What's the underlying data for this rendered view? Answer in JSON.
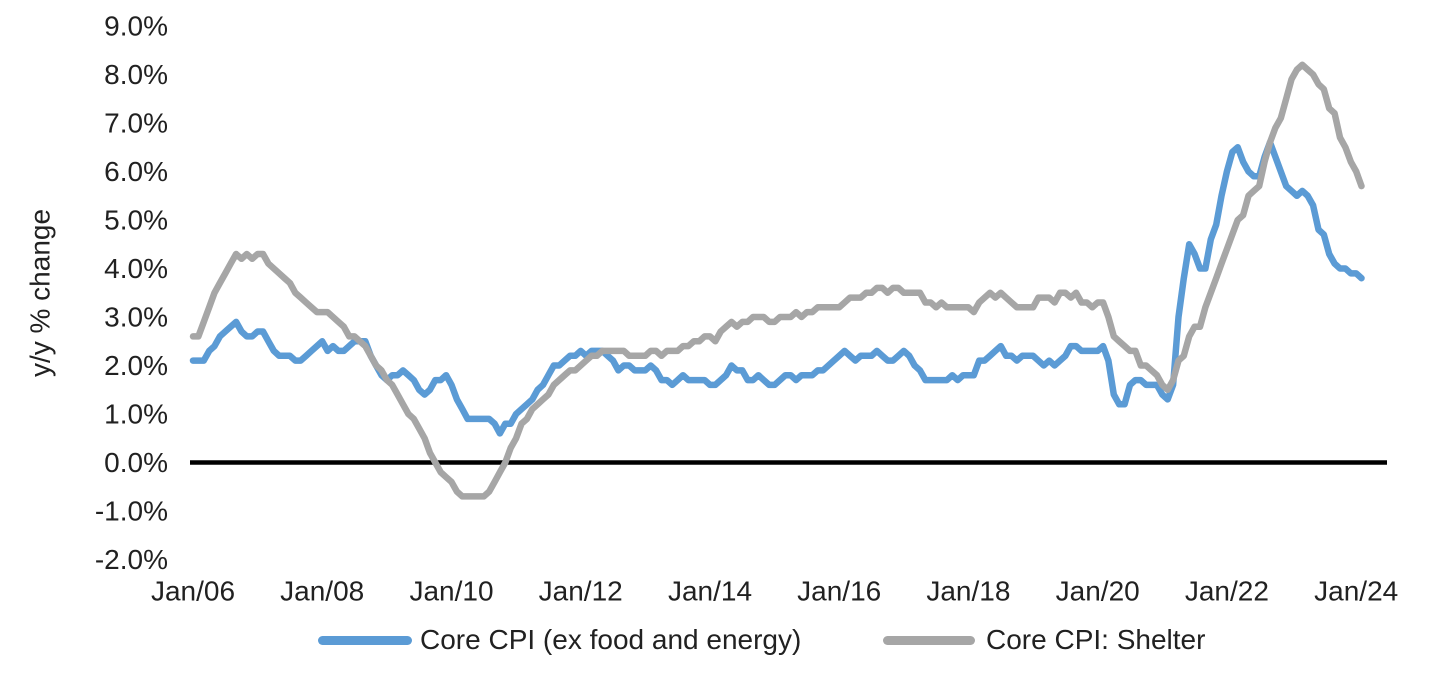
{
  "chart_data": {
    "type": "line",
    "title": "",
    "ylabel": "y/y % change",
    "xlabel": "",
    "ylim": [
      -2.0,
      9.0
    ],
    "grid": false,
    "legend_position": "bottom",
    "zero_line": true,
    "x_frequency": "monthly",
    "x_range": [
      "Jan 2006",
      "Feb 2024"
    ],
    "x_tick_labels": [
      "Jan/06",
      "Jan/08",
      "Jan/10",
      "Jan/12",
      "Jan/14",
      "Jan/16",
      "Jan/18",
      "Jan/20",
      "Jan/22",
      "Jan/24"
    ],
    "y_ticks": [
      {
        "label": "9.0%",
        "value": 9.0
      },
      {
        "label": "8.0%",
        "value": 8.0
      },
      {
        "label": "7.0%",
        "value": 7.0
      },
      {
        "label": "6.0%",
        "value": 6.0
      },
      {
        "label": "5.0%",
        "value": 5.0
      },
      {
        "label": "4.0%",
        "value": 4.0
      },
      {
        "label": "3.0%",
        "value": 3.0
      },
      {
        "label": "2.0%",
        "value": 2.0
      },
      {
        "label": "1.0%",
        "value": 1.0
      },
      {
        "label": "0.0%",
        "value": 0.0
      },
      {
        "label": "-1.0%",
        "value": -1.0
      },
      {
        "label": "-2.0%",
        "value": -2.0
      }
    ],
    "series": [
      {
        "name": "Core CPI (ex food and energy)",
        "color": "#5B9BD5",
        "values": [
          2.1,
          2.1,
          2.1,
          2.3,
          2.4,
          2.6,
          2.7,
          2.8,
          2.9,
          2.7,
          2.6,
          2.6,
          2.7,
          2.7,
          2.5,
          2.3,
          2.2,
          2.2,
          2.2,
          2.1,
          2.1,
          2.2,
          2.3,
          2.4,
          2.5,
          2.3,
          2.4,
          2.3,
          2.3,
          2.4,
          2.5,
          2.5,
          2.5,
          2.2,
          2.0,
          1.8,
          1.7,
          1.8,
          1.8,
          1.9,
          1.8,
          1.7,
          1.5,
          1.4,
          1.5,
          1.7,
          1.7,
          1.8,
          1.6,
          1.3,
          1.1,
          0.9,
          0.9,
          0.9,
          0.9,
          0.9,
          0.8,
          0.6,
          0.8,
          0.8,
          1.0,
          1.1,
          1.2,
          1.3,
          1.5,
          1.6,
          1.8,
          2.0,
          2.0,
          2.1,
          2.2,
          2.2,
          2.3,
          2.2,
          2.3,
          2.3,
          2.3,
          2.2,
          2.1,
          1.9,
          2.0,
          2.0,
          1.9,
          1.9,
          1.9,
          2.0,
          1.9,
          1.7,
          1.7,
          1.6,
          1.7,
          1.8,
          1.7,
          1.7,
          1.7,
          1.7,
          1.6,
          1.6,
          1.7,
          1.8,
          2.0,
          1.9,
          1.9,
          1.7,
          1.7,
          1.8,
          1.7,
          1.6,
          1.6,
          1.7,
          1.8,
          1.8,
          1.7,
          1.8,
          1.8,
          1.8,
          1.9,
          1.9,
          2.0,
          2.1,
          2.2,
          2.3,
          2.2,
          2.1,
          2.2,
          2.2,
          2.2,
          2.3,
          2.2,
          2.1,
          2.1,
          2.2,
          2.3,
          2.2,
          2.0,
          1.9,
          1.7,
          1.7,
          1.7,
          1.7,
          1.7,
          1.8,
          1.7,
          1.8,
          1.8,
          1.8,
          2.1,
          2.1,
          2.2,
          2.3,
          2.4,
          2.2,
          2.2,
          2.1,
          2.2,
          2.2,
          2.2,
          2.1,
          2.0,
          2.1,
          2.0,
          2.1,
          2.2,
          2.4,
          2.4,
          2.3,
          2.3,
          2.3,
          2.3,
          2.4,
          2.1,
          1.4,
          1.2,
          1.2,
          1.6,
          1.7,
          1.7,
          1.6,
          1.6,
          1.6,
          1.4,
          1.3,
          1.6,
          3.0,
          3.8,
          4.5,
          4.3,
          4.0,
          4.0,
          4.6,
          4.9,
          5.5,
          6.0,
          6.4,
          6.5,
          6.2,
          6.0,
          5.9,
          5.9,
          6.3,
          6.6,
          6.3,
          6.0,
          5.7,
          5.6,
          5.5,
          5.6,
          5.5,
          5.3,
          4.8,
          4.7,
          4.3,
          4.1,
          4.0,
          4.0,
          3.9,
          3.9,
          3.8
        ]
      },
      {
        "name": "Core CPI: Shelter",
        "color": "#A6A6A6",
        "values": [
          2.6,
          2.6,
          2.9,
          3.2,
          3.5,
          3.7,
          3.9,
          4.1,
          4.3,
          4.2,
          4.3,
          4.2,
          4.3,
          4.3,
          4.1,
          4.0,
          3.9,
          3.8,
          3.7,
          3.5,
          3.4,
          3.3,
          3.2,
          3.1,
          3.1,
          3.1,
          3.0,
          2.9,
          2.8,
          2.6,
          2.6,
          2.5,
          2.4,
          2.2,
          2.0,
          1.9,
          1.7,
          1.6,
          1.4,
          1.2,
          1.0,
          0.9,
          0.7,
          0.5,
          0.2,
          0.0,
          -0.2,
          -0.3,
          -0.4,
          -0.6,
          -0.7,
          -0.7,
          -0.7,
          -0.7,
          -0.7,
          -0.6,
          -0.4,
          -0.2,
          0.0,
          0.3,
          0.5,
          0.8,
          0.9,
          1.1,
          1.2,
          1.3,
          1.4,
          1.6,
          1.7,
          1.8,
          1.9,
          1.9,
          2.0,
          2.1,
          2.2,
          2.2,
          2.3,
          2.3,
          2.3,
          2.3,
          2.3,
          2.2,
          2.2,
          2.2,
          2.2,
          2.3,
          2.3,
          2.2,
          2.3,
          2.3,
          2.3,
          2.4,
          2.4,
          2.5,
          2.5,
          2.6,
          2.6,
          2.5,
          2.7,
          2.8,
          2.9,
          2.8,
          2.9,
          2.9,
          3.0,
          3.0,
          3.0,
          2.9,
          2.9,
          3.0,
          3.0,
          3.0,
          3.1,
          3.0,
          3.1,
          3.1,
          3.2,
          3.2,
          3.2,
          3.2,
          3.2,
          3.3,
          3.4,
          3.4,
          3.4,
          3.5,
          3.5,
          3.6,
          3.6,
          3.5,
          3.6,
          3.6,
          3.5,
          3.5,
          3.5,
          3.5,
          3.3,
          3.3,
          3.2,
          3.3,
          3.2,
          3.2,
          3.2,
          3.2,
          3.2,
          3.1,
          3.3,
          3.4,
          3.5,
          3.4,
          3.5,
          3.4,
          3.3,
          3.2,
          3.2,
          3.2,
          3.2,
          3.4,
          3.4,
          3.4,
          3.3,
          3.5,
          3.5,
          3.4,
          3.5,
          3.3,
          3.3,
          3.2,
          3.3,
          3.3,
          3.0,
          2.6,
          2.5,
          2.4,
          2.3,
          2.3,
          2.0,
          2.0,
          1.9,
          1.8,
          1.6,
          1.5,
          1.7,
          2.1,
          2.2,
          2.6,
          2.8,
          2.8,
          3.2,
          3.5,
          3.8,
          4.1,
          4.4,
          4.7,
          5.0,
          5.1,
          5.5,
          5.6,
          5.7,
          6.2,
          6.6,
          6.9,
          7.1,
          7.5,
          7.9,
          8.1,
          8.2,
          8.1,
          8.0,
          7.8,
          7.7,
          7.3,
          7.2,
          6.7,
          6.5,
          6.2,
          6.0,
          5.7
        ]
      }
    ],
    "axis_line_color": "#000000",
    "tick_text_color": "#212121"
  }
}
